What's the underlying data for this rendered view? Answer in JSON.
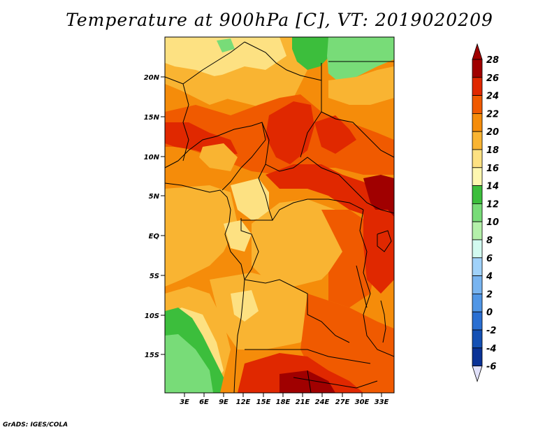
{
  "title": "Temperature at 900hPa [C], VT: 2019020209",
  "credit": "GrADS: IGES/COLA",
  "map": {
    "lat_labels": [
      "20N",
      "15N",
      "10N",
      "5N",
      "EQ",
      "5S",
      "10S",
      "15S"
    ],
    "lon_labels": [
      "3E",
      "6E",
      "9E",
      "12E",
      "15E",
      "18E",
      "21E",
      "24E",
      "27E",
      "30E",
      "33E"
    ],
    "units": "C"
  },
  "colorbar": {
    "labels": [
      "28",
      "26",
      "24",
      "22",
      "20",
      "18",
      "16",
      "14",
      "12",
      "10",
      "8",
      "6",
      "4",
      "2",
      "0",
      "-2",
      "-4",
      "-6"
    ],
    "colors": [
      "#a00000",
      "#e02800",
      "#f05a00",
      "#f58c0a",
      "#f9b432",
      "#fde182",
      "#fdf7b0",
      "#3cbe3c",
      "#78dc78",
      "#b4f0aa",
      "#d2faf0",
      "#a0d2fa",
      "#78b4f0",
      "#5096e6",
      "#2a6fd2",
      "#1450b4",
      "#0a3296",
      "#000064"
    ],
    "under_color": "#e1e1fa"
  },
  "palette": {
    "c28": "#a00000",
    "c26": "#e02800",
    "c24": "#f05a00",
    "c22": "#f58c0a",
    "c20": "#f9b432",
    "c18": "#fde182",
    "c16": "#fdf7b0",
    "c14": "#3cbe3c",
    "c12": "#78dc78",
    "c10": "#b4f0aa"
  }
}
